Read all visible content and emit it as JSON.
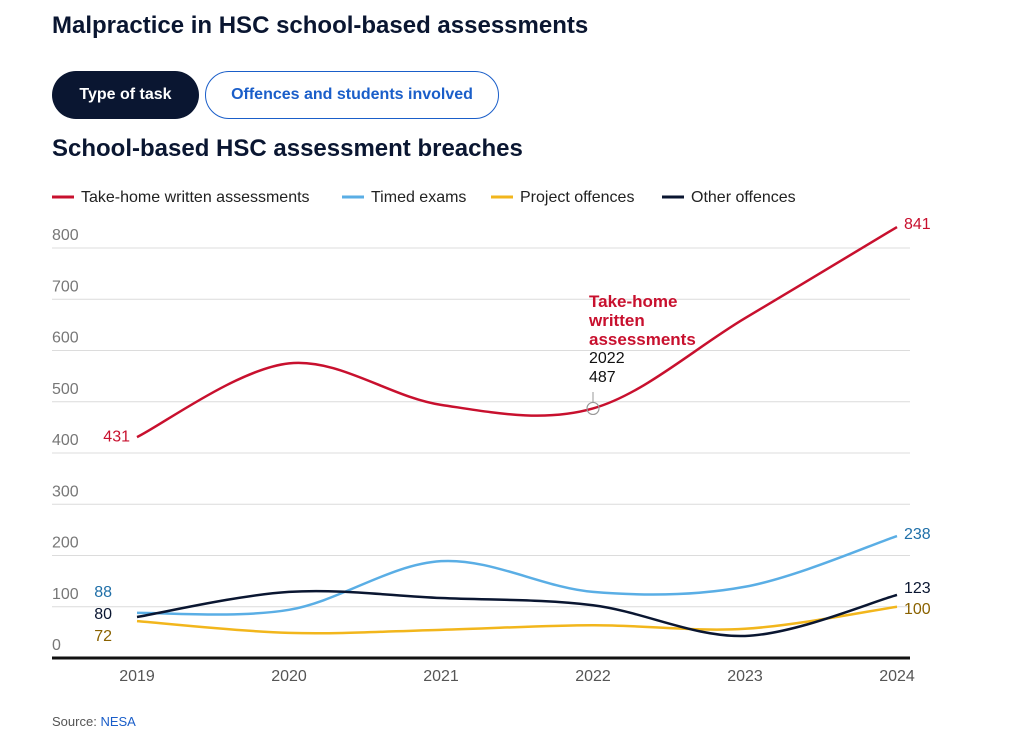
{
  "header": {
    "title": "Malpractice in HSC school-based assessments"
  },
  "tabs": [
    "Type of task",
    "Offences and students involved"
  ],
  "chart_data": {
    "type": "line",
    "title": "School-based HSC assessment breaches",
    "categories": [
      "2019",
      "2020",
      "2021",
      "2022",
      "2023",
      "2024"
    ],
    "series": [
      {
        "name": "Take-home written assessments",
        "color": "#c8102e",
        "label_color": "#c8102e",
        "values": [
          431,
          575,
          494,
          487,
          663,
          841
        ]
      },
      {
        "name": "Timed exams",
        "color": "#5aaee5",
        "label_color": "#1f6fa8",
        "values": [
          88,
          94,
          189,
          129,
          139,
          238
        ]
      },
      {
        "name": "Project offences",
        "color": "#f2b61c",
        "label_color": "#8a6200",
        "values": [
          72,
          49,
          55,
          64,
          57,
          100
        ]
      },
      {
        "name": "Other offences",
        "color": "#0a1631",
        "label_color": "#0a1631",
        "values": [
          80,
          129,
          117,
          103,
          43,
          123
        ]
      }
    ],
    "ylim": [
      0,
      850
    ],
    "yticks": [
      0,
      100,
      200,
      300,
      400,
      500,
      600,
      700,
      800
    ],
    "grid": true
  },
  "source": {
    "label": "Source:",
    "link": "NESA"
  }
}
